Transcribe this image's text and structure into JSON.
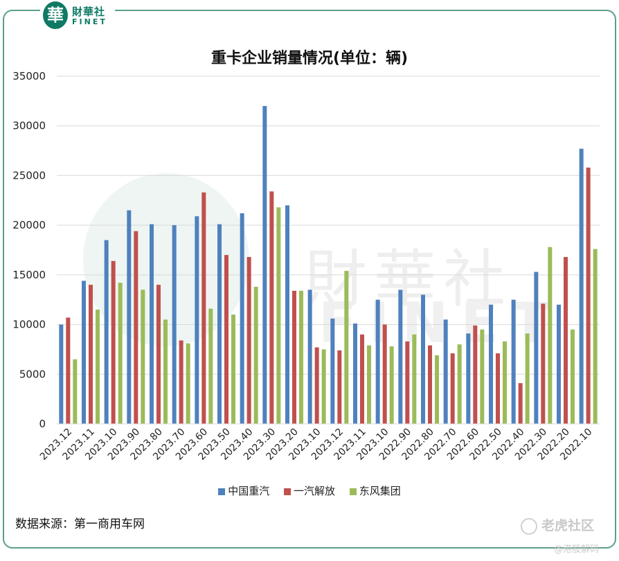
{
  "logo": {
    "seal": "華",
    "cn": "財華社",
    "en": "FINET"
  },
  "watermark": {
    "cn": "財華社",
    "en": "FINET"
  },
  "colors": {
    "series1": "#4f81bd",
    "series2": "#c0504d",
    "series3": "#9bbb59",
    "frame": "#5a9e8c"
  },
  "source_text": "数据来源：第一商用车网",
  "badge": {
    "text": "老虎社区",
    "sub": "@港股解码"
  },
  "chart_data": {
    "type": "bar",
    "title": "重卡企业销量情况(单位：辆)",
    "ylim": [
      0,
      35000
    ],
    "yticks": [
      "0",
      "5000",
      "10000",
      "15000",
      "20000",
      "25000",
      "30000",
      "35000"
    ],
    "categories": [
      "2023.12",
      "2023.11",
      "2023.10",
      "2023.90",
      "2023.80",
      "2023.70",
      "2023.60",
      "2023.50",
      "2023.40",
      "2023.30",
      "2023.20",
      "2023.10",
      "2023.12",
      "2023.11",
      "2023.10",
      "2022.90",
      "2022.80",
      "2022.70",
      "2022.60",
      "2022.50",
      "2022.40",
      "2022.30",
      "2022.20",
      "2022.10"
    ],
    "series": [
      {
        "name": "中国重汽",
        "values": [
          10000,
          14400,
          18500,
          21500,
          20100,
          20000,
          20900,
          20100,
          21200,
          32000,
          22000,
          13500,
          10600,
          10100,
          12500,
          13500,
          13000,
          10500,
          9100,
          12000,
          12500,
          15300,
          12000,
          27700
        ]
      },
      {
        "name": "一汽解放",
        "values": [
          10700,
          14000,
          16400,
          19400,
          14000,
          8400,
          23300,
          17000,
          16800,
          23400,
          13400,
          7700,
          7400,
          9000,
          10000,
          8300,
          7900,
          7100,
          9900,
          7100,
          4100,
          12100,
          16800,
          25800
        ]
      },
      {
        "name": "东风集团",
        "values": [
          6500,
          11500,
          14200,
          13500,
          10500,
          8100,
          11600,
          11000,
          13800,
          21800,
          13400,
          7500,
          15400,
          7900,
          7800,
          9000,
          6900,
          8000,
          9500,
          8300,
          9100,
          17800,
          9500,
          17600
        ]
      }
    ],
    "legend_position": "bottom",
    "grid": true
  }
}
